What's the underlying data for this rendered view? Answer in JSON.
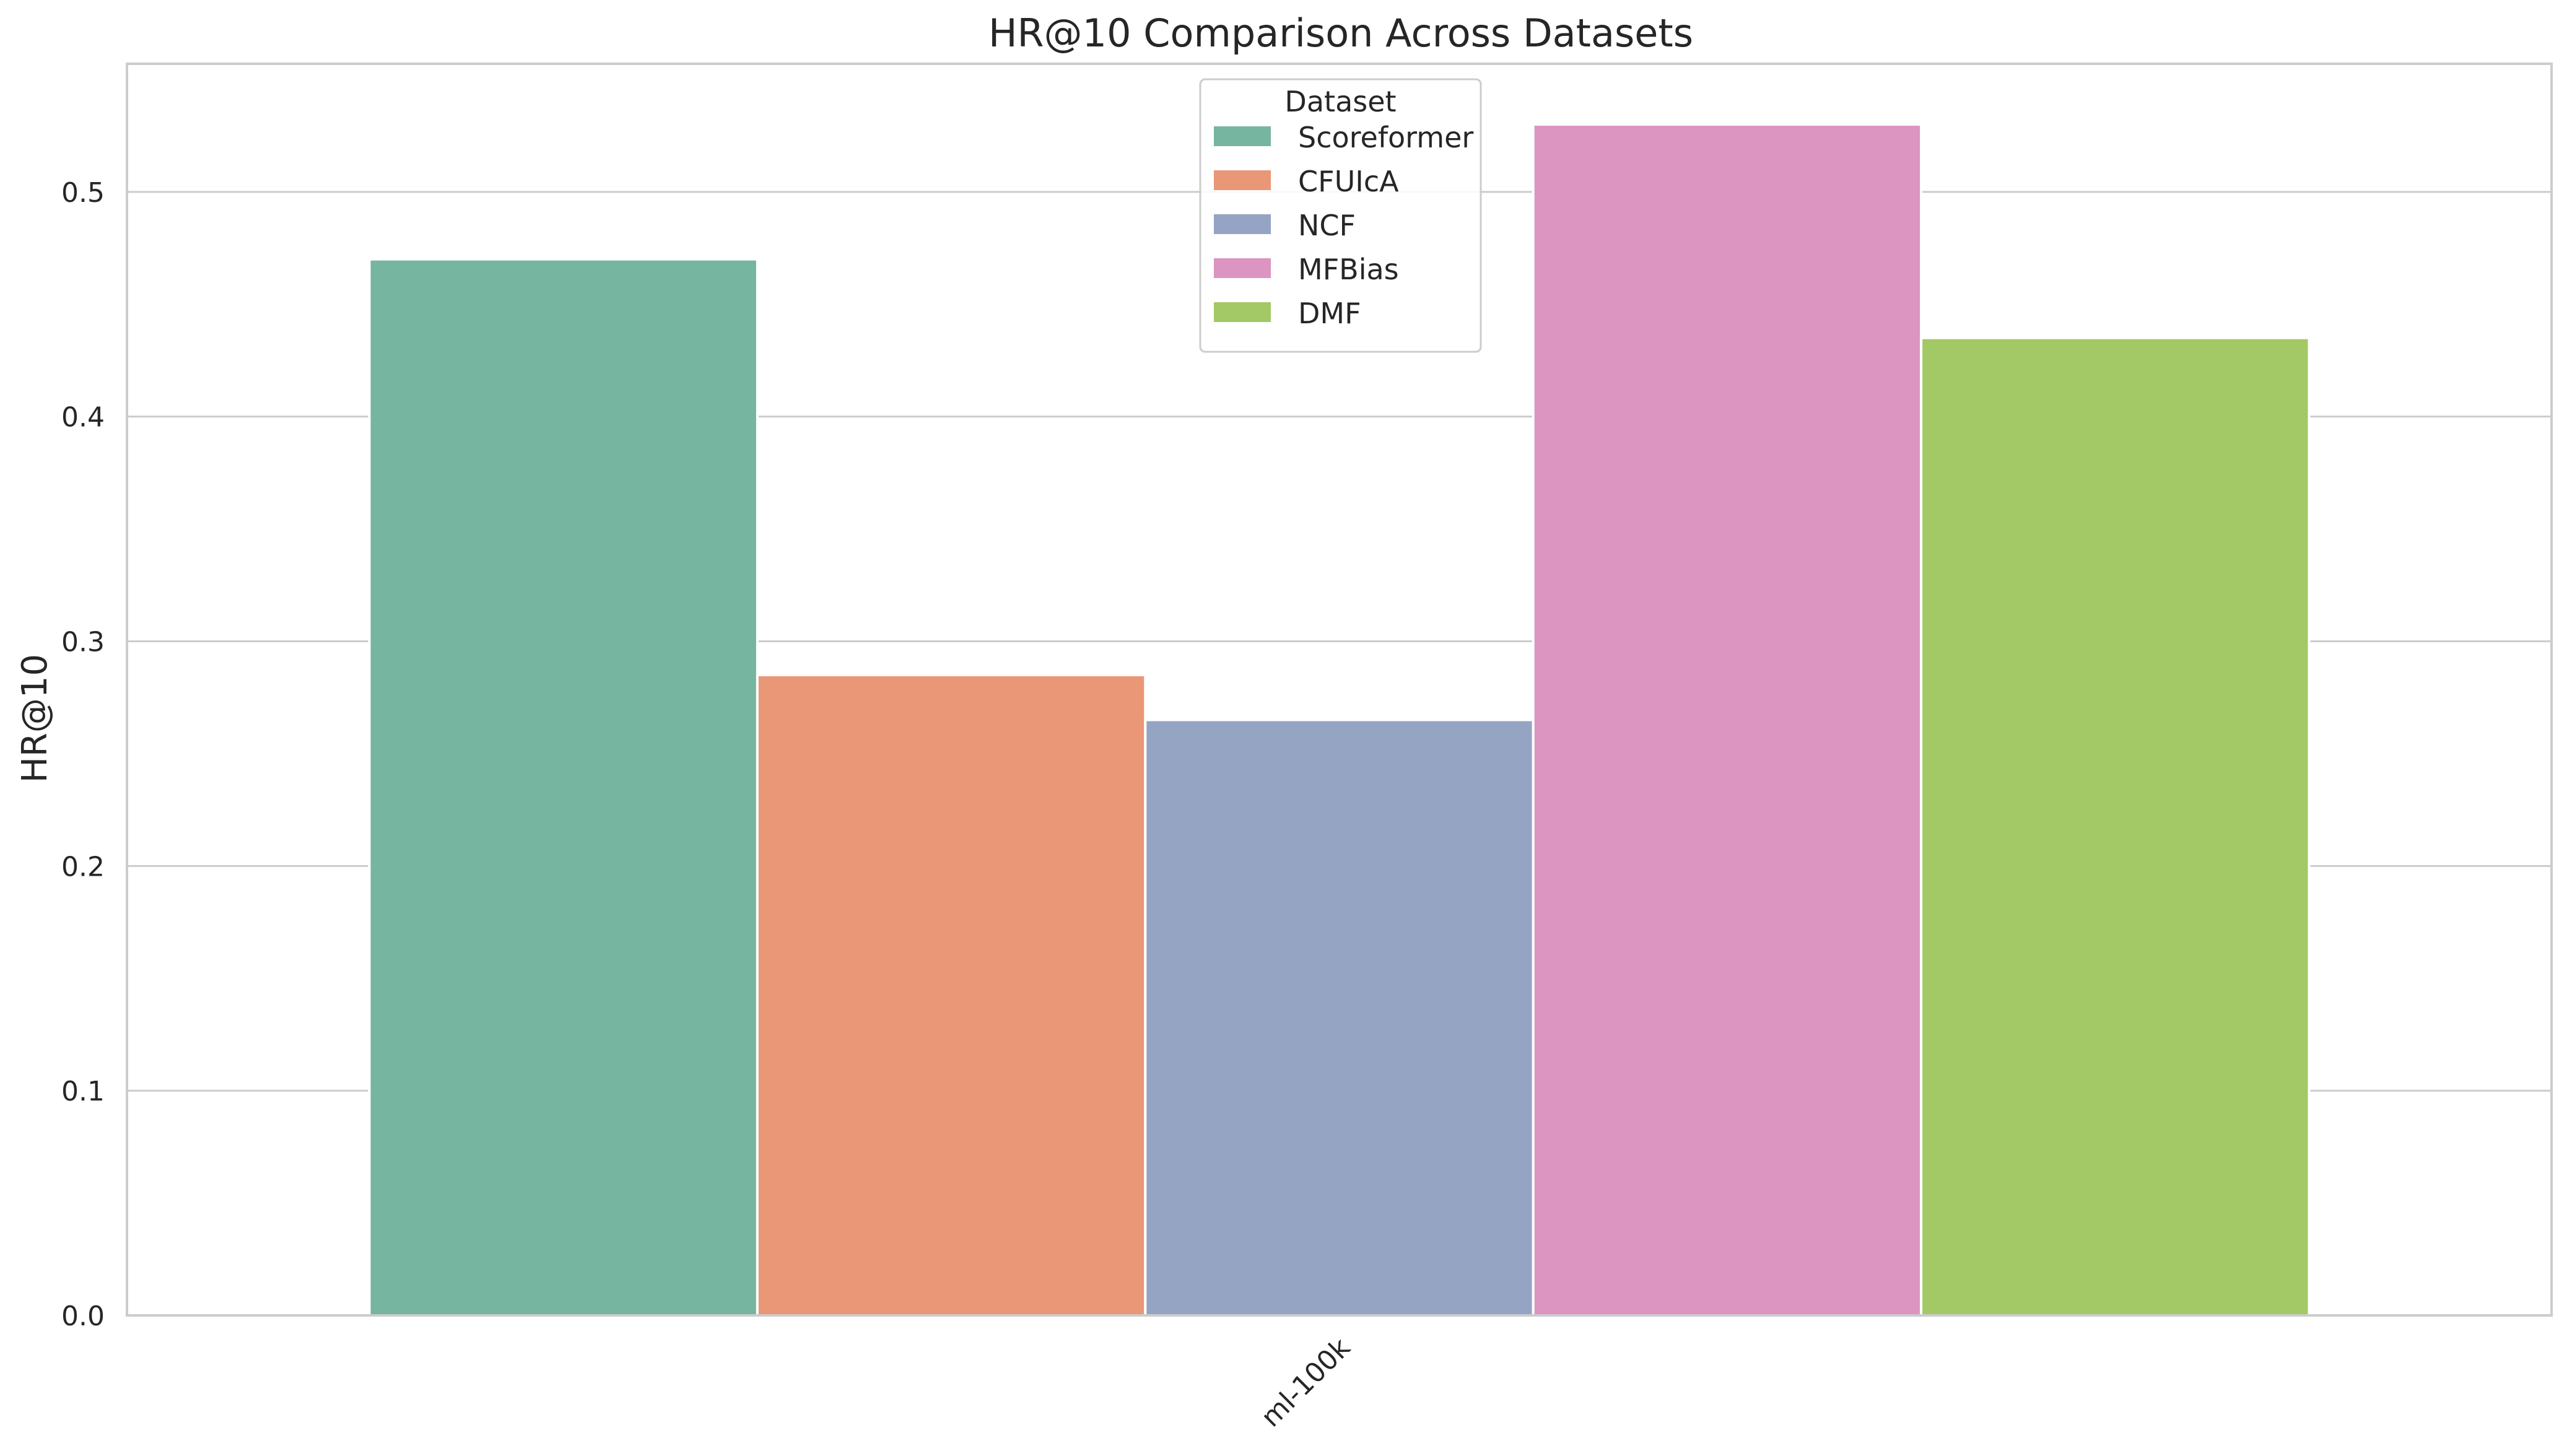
{
  "chart_data": {
    "type": "bar",
    "title": "HR@10 Comparison Across Datasets",
    "xlabel": "",
    "ylabel": "HR@10",
    "categories": [
      "ml-100k"
    ],
    "series": [
      {
        "name": "Scoreformer",
        "values": [
          0.47
        ],
        "color": "#76b5a0"
      },
      {
        "name": "CFUIcA",
        "values": [
          0.285
        ],
        "color": "#e99776"
      },
      {
        "name": "NCF",
        "values": [
          0.265
        ],
        "color": "#95a4c3"
      },
      {
        "name": "MFBias",
        "values": [
          0.53
        ],
        "color": "#db95c0"
      },
      {
        "name": "DMF",
        "values": [
          0.435
        ],
        "color": "#a3c866"
      }
    ],
    "ylim": [
      0,
      0.557
    ],
    "yticks": [
      "0.0",
      "0.1",
      "0.2",
      "0.3",
      "0.4",
      "0.5"
    ],
    "grid": true,
    "legend": {
      "title": "Dataset",
      "placement": "top-center"
    }
  }
}
